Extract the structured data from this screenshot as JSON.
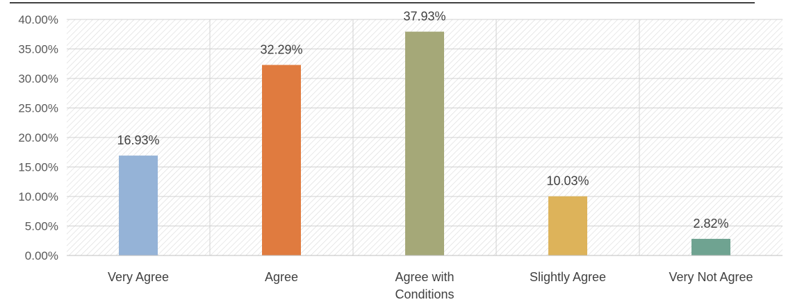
{
  "chart_data": {
    "type": "bar",
    "categories": [
      [
        "Very Agree"
      ],
      [
        "Agree"
      ],
      [
        "Agree with",
        "Conditions"
      ],
      [
        "Slightly Agree"
      ],
      [
        "Very Not Agree"
      ]
    ],
    "values": [
      16.93,
      32.29,
      37.93,
      10.03,
      2.82
    ],
    "data_labels": [
      "16.93%",
      "32.29%",
      "37.93%",
      "10.03%",
      "2.82%"
    ],
    "colors": [
      "#95B3D7",
      "#E07B3F",
      "#A5A878",
      "#DDB35A",
      "#6FA391"
    ],
    "yticks": [
      "0.00%",
      "5.00%",
      "10.00%",
      "15.00%",
      "20.00%",
      "25.00%",
      "30.00%",
      "35.00%",
      "40.00%"
    ],
    "ylim": [
      0,
      40
    ],
    "title": "",
    "xlabel": "",
    "ylabel": "",
    "grid": true,
    "plot_background": "hatched"
  }
}
